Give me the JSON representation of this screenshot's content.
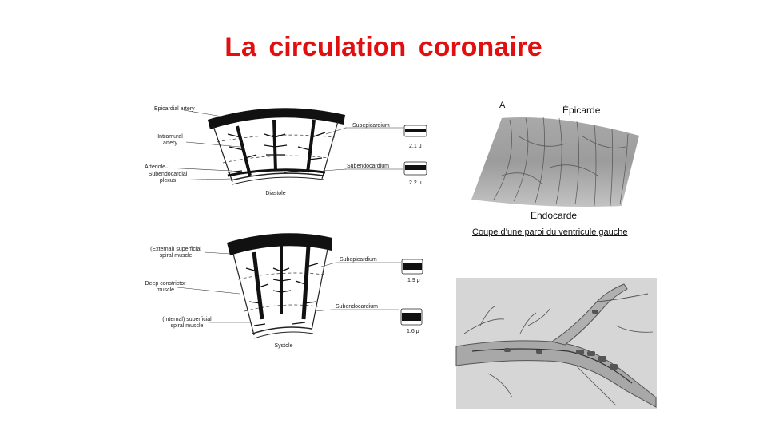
{
  "slide": {
    "title": "La circulation coronaire"
  },
  "diastole": {
    "epicardial_artery": "Epicardial artery",
    "intramural_artery_1": "Intramural",
    "intramural_artery_2": "artery",
    "arteriole": "Arteriole",
    "subendocardial_plexus_1": "Subendocardial",
    "subendocardial_plexus_2": "plexus",
    "subepicardium": "Subepicardium",
    "subendocardium": "Subendocardium",
    "value_top": "2.1 μ",
    "value_bottom": "2.2 μ",
    "phase": "Diastole"
  },
  "systole": {
    "external_muscle_1": "(External) superficial",
    "external_muscle_2": "spiral muscle",
    "deep_muscle_1": "Deep constrictor",
    "deep_muscle_2": "muscle",
    "internal_muscle_1": "(Internal) superficial",
    "internal_muscle_2": "spiral muscle",
    "subepicardium": "Subepicardium",
    "subendocardium": "Subendocardium",
    "value_top": "1.9 μ",
    "value_bottom": "1.6 μ",
    "phase": "Systole"
  },
  "wall_photo": {
    "letter": "A",
    "top_label": "Épicarde",
    "bottom_label": "Endocarde",
    "caption": "Coupe d’une paroi du ventricule gauche"
  }
}
